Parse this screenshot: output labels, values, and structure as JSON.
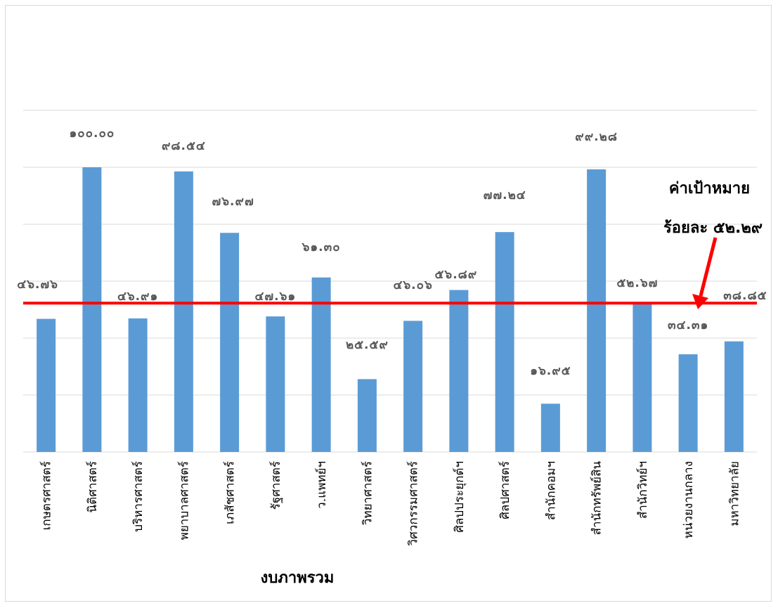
{
  "chart_data": {
    "type": "bar",
    "categories": [
      "เกษตรศาสตร์",
      "นิติศาสตร์",
      "บริหารศาสตร์",
      "พยาบาลศาสตร์",
      "เภสัชศาสตร์",
      "รัฐศาสตร์",
      "ว.แพทย์ฯ",
      "วิทยาศาสตร์",
      "วิศวกรรมศาสตร์",
      "ศิลปประยุกต์ฯ",
      "ศิลปศาสตร์",
      "สำนักคอมฯ",
      "สำนักทรัพย์สิน",
      "สำนักวิทย์ฯ",
      "หน่วยงานกลาง",
      "มหาวิทยาลัย"
    ],
    "values": [
      46.76,
      100.0,
      46.91,
      98.54,
      76.97,
      47.61,
      61.3,
      25.59,
      46.06,
      56.89,
      77.24,
      16.95,
      99.28,
      52.67,
      34.31,
      38.85
    ],
    "value_labels": [
      "๔๖.๗๖",
      "๑๐๐.๐๐",
      "๔๖.๙๑",
      "๙๘.๕๔",
      "๗๖.๙๗",
      "๔๗.๖๑",
      "๖๑.๓๐",
      "๒๕.๕๙",
      "๔๖.๐๖",
      "๕๖.๘๙",
      "๗๗.๒๔",
      "๑๖.๙๕",
      "๙๙.๒๘",
      "๕๒.๖๗",
      "๓๔.๓๑",
      "๓๘.๘๕"
    ],
    "xlabel": "งบภาพรวม",
    "ylabel": "",
    "ylim": [
      0,
      120
    ],
    "grid": true,
    "bar_color": "#5b9bd5",
    "target": {
      "value": 52.29,
      "color": "#ff0000",
      "label_line1": "ค่าเป้าหมาย",
      "label_line2": "ร้อยละ ๕๒.๒๙"
    }
  }
}
